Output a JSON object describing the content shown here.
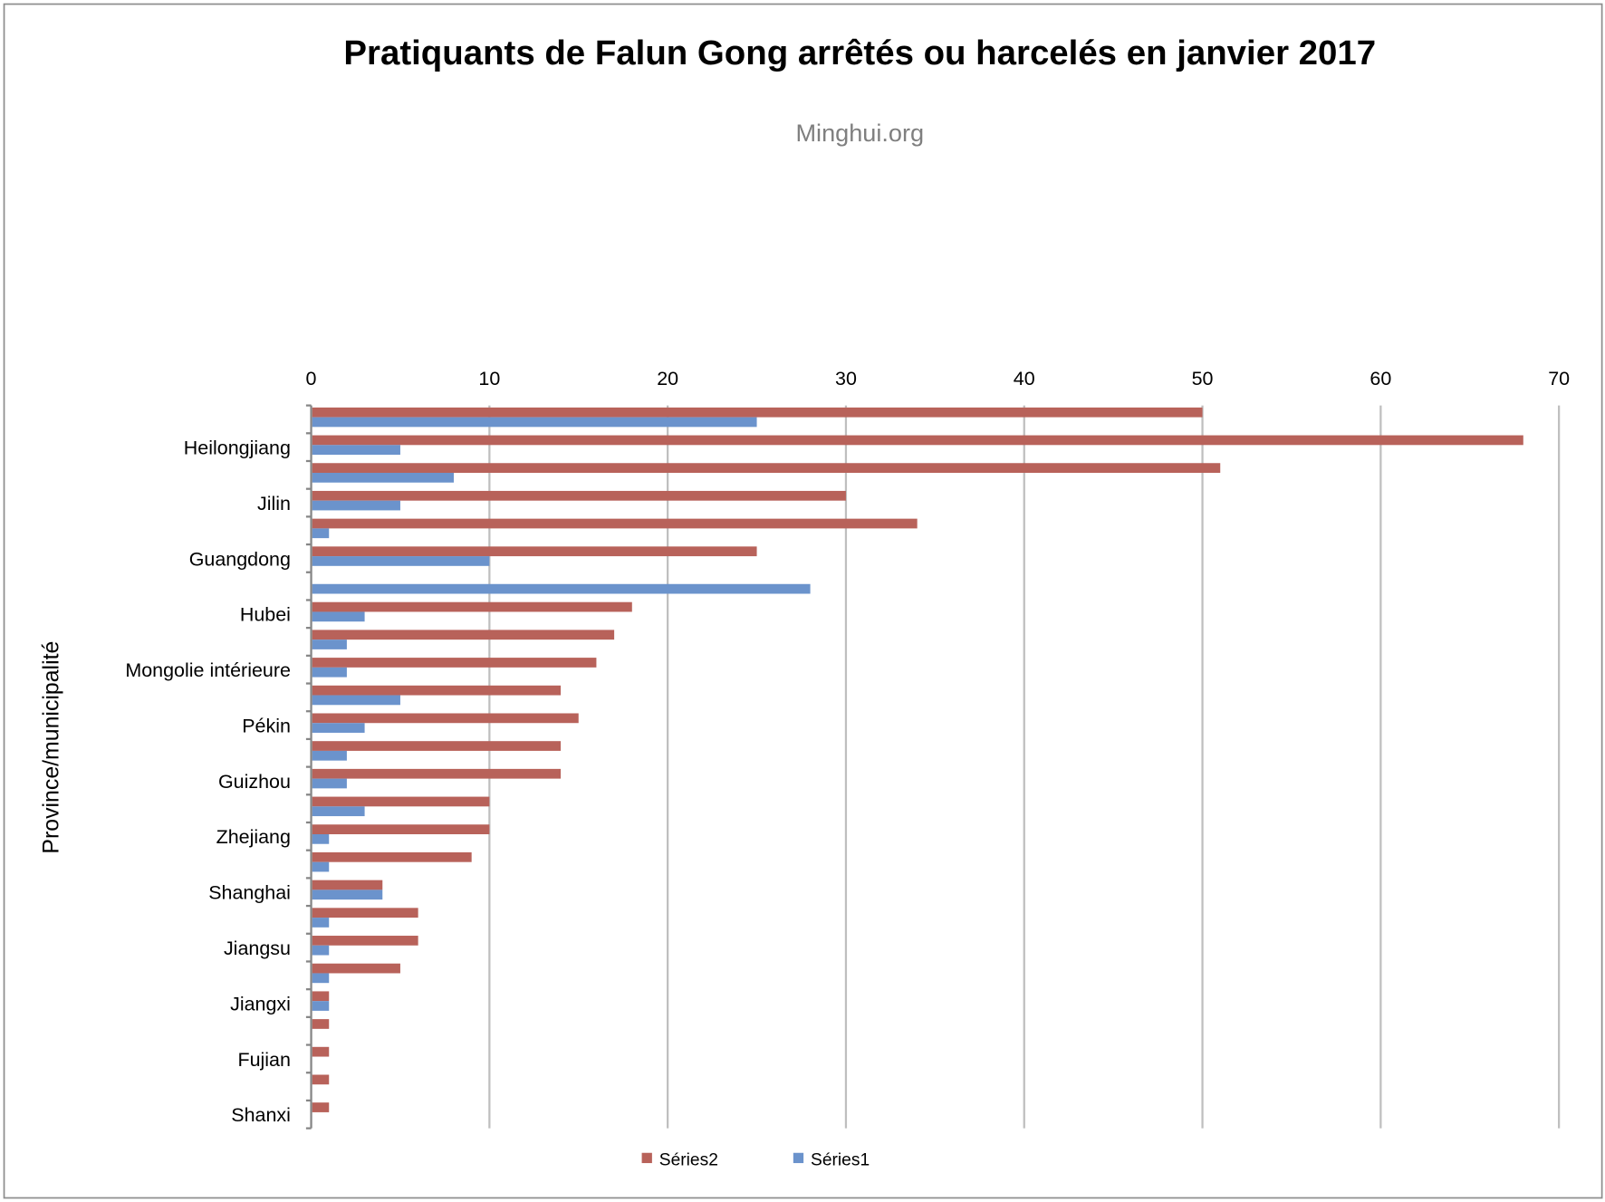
{
  "chart_data": {
    "type": "bar",
    "orientation": "horizontal",
    "title": "Pratiquants de Falun Gong arrêtés ou harcelés en janvier 2017",
    "subtitle": "Minghui.org",
    "xlabel": "",
    "ylabel": "Province/municipalité",
    "xlim": [
      0,
      70
    ],
    "xticks": [
      0,
      10,
      20,
      30,
      40,
      50,
      60,
      70
    ],
    "x_axis_position": "top",
    "grid": true,
    "legend": "bottom",
    "categories": [
      "",
      "Heilongjiang",
      "",
      "Jilin",
      "",
      "Guangdong",
      "",
      "Hubei",
      "",
      "Mongolie intérieure",
      "",
      "Pékin",
      "",
      "Guizhou",
      "",
      "Zhejiang",
      "",
      "Shanghai",
      "",
      "Jiangsu",
      "",
      "Jiangxi",
      "",
      "Fujian",
      "",
      "Shanxi"
    ],
    "series": [
      {
        "name": "Séries2",
        "color": "#B8625A",
        "values": [
          50,
          68,
          51,
          30,
          34,
          25,
          0,
          18,
          17,
          16,
          14,
          15,
          14,
          14,
          10,
          10,
          9,
          4,
          6,
          6,
          5,
          1,
          1,
          1,
          1,
          1
        ]
      },
      {
        "name": "Séries1",
        "color": "#6B93CC",
        "values": [
          25,
          5,
          8,
          5,
          1,
          10,
          28,
          3,
          2,
          2,
          5,
          3,
          2,
          2,
          3,
          1,
          1,
          4,
          1,
          1,
          1,
          1,
          0,
          0,
          0,
          0
        ]
      }
    ]
  }
}
